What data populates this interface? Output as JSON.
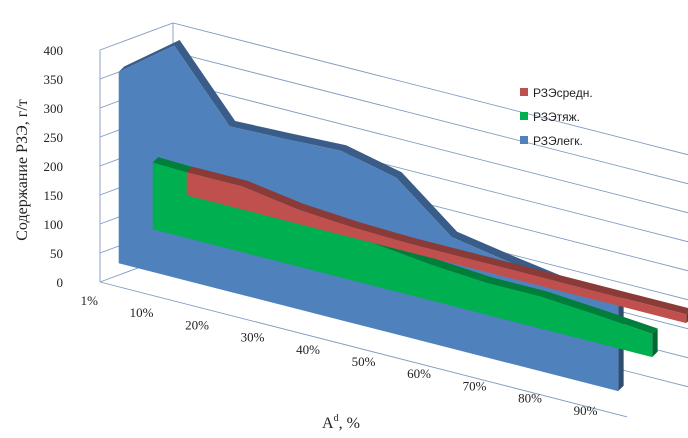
{
  "chart_data": {
    "type": "area",
    "view": "3d",
    "categories": [
      "1%",
      "10%",
      "20%",
      "30%",
      "40%",
      "50%",
      "60%",
      "70%",
      "80%",
      "90%"
    ],
    "ylabel": "Содержание РЗЭ, г/т",
    "xlabel": "A",
    "xlabel_sup": "d",
    "xlabel_suffix": ", %",
    "yticks": [
      "0",
      "50",
      "100",
      "150",
      "200",
      "250",
      "300",
      "350",
      "400"
    ],
    "ylim": [
      0,
      400
    ],
    "grid": true,
    "legend_position": "right",
    "series": [
      {
        "name": "РЗЭсредн.",
        "color": "#c0504d",
        "values": [
          40,
          40,
          25,
          18,
          15,
          15,
          15,
          15,
          15,
          15
        ]
      },
      {
        "name": "РЗЭтяж.",
        "color": "#00b050",
        "values": [
          115,
          112,
          85,
          85,
          73,
          62,
          55,
          55,
          48,
          40
        ]
      },
      {
        "name": "РЗЭлегк.",
        "color": "#4f81bd",
        "values": [
          330,
          400,
          285,
          288,
          292,
          270,
          192,
          175,
          160,
          150
        ]
      }
    ]
  }
}
